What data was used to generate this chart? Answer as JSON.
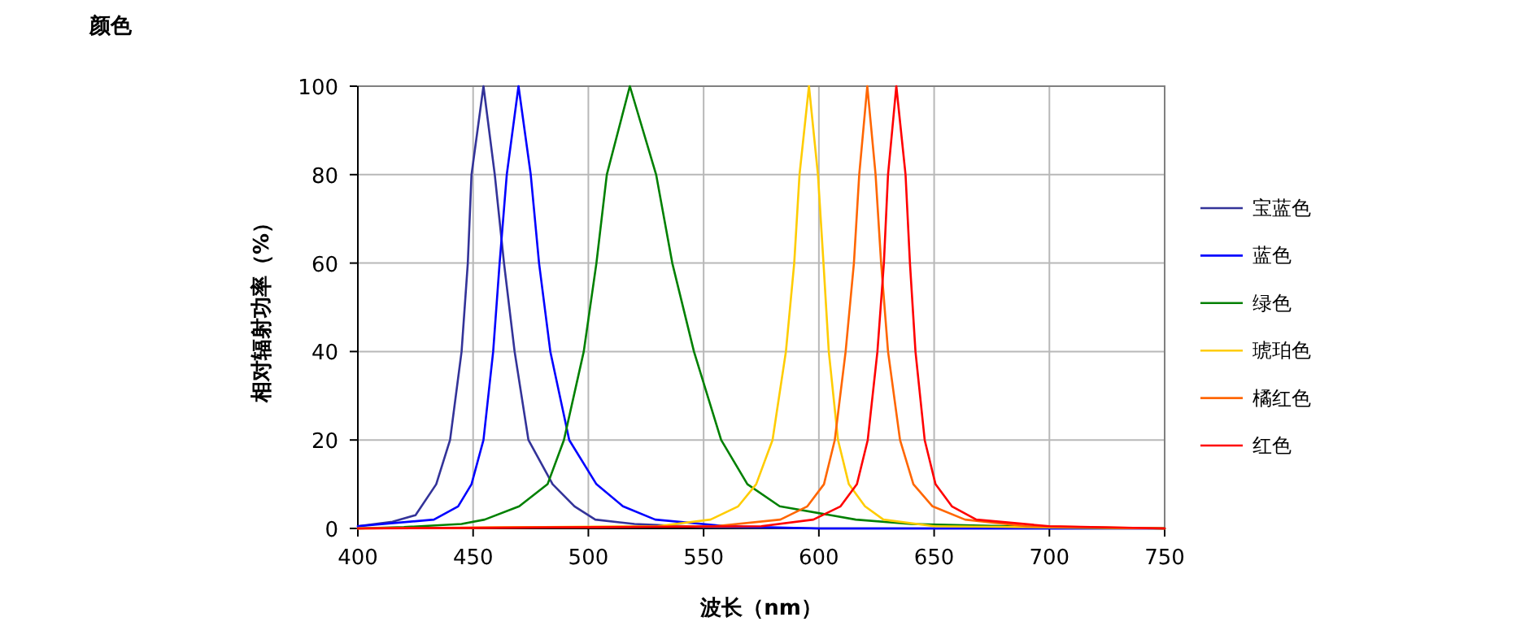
{
  "chart_data": {
    "type": "line",
    "title": "颜色",
    "xlabel": "波长（nm）",
    "ylabel": "相对辐射功率（%）",
    "xlim": [
      400,
      750
    ],
    "xticks": [
      400,
      450,
      500,
      550,
      600,
      650,
      700,
      750
    ],
    "ylim": [
      0,
      100
    ],
    "yticks": [
      0,
      20,
      40,
      60,
      80,
      100
    ],
    "grid": true,
    "legend": "right",
    "marker": "none",
    "line_style": "solid",
    "series": [
      {
        "name": "宝蓝色",
        "color": "#333399",
        "x": [
          400,
          415,
          425,
          434,
          440,
          445,
          447.7,
          449.3,
          454.5,
          459.4,
          463.4,
          468,
          474,
          484.5,
          494,
          503,
          520,
          550,
          600,
          750
        ],
        "values": [
          0.5,
          1.5,
          3,
          10,
          20,
          40,
          60,
          80,
          100,
          80,
          60,
          40,
          20,
          10,
          5,
          2,
          1,
          0.3,
          0,
          0
        ]
      },
      {
        "name": "蓝色",
        "color": "#0000ff",
        "x": [
          400,
          433,
          443.5,
          449.3,
          454.5,
          458.7,
          461.5,
          464.6,
          469.7,
          475,
          478.6,
          483.5,
          491.7,
          503.5,
          515,
          529,
          560,
          600,
          750
        ],
        "values": [
          0.5,
          2,
          5,
          10,
          20,
          40,
          60,
          80,
          100,
          80,
          60,
          40,
          20,
          10,
          5,
          2,
          0.5,
          0,
          0
        ]
      },
      {
        "name": "绿色",
        "color": "#008000",
        "x": [
          400,
          420,
          445,
          455,
          470,
          482.3,
          489.4,
          498,
          503.5,
          508,
          518,
          529.4,
          536.4,
          545.8,
          557.6,
          569,
          583,
          616,
          640,
          700,
          750
        ],
        "values": [
          0,
          0.3,
          1,
          2,
          5,
          10,
          20,
          40,
          60,
          80,
          100,
          80,
          60,
          40,
          20,
          10,
          5,
          2,
          1,
          0.3,
          0
        ]
      },
      {
        "name": "琥珀色",
        "color": "#ffcc00",
        "x": [
          400,
          530,
          553,
          565,
          572.8,
          579.9,
          585.7,
          589.3,
          591.6,
          595.7,
          599.6,
          602,
          604.3,
          608.3,
          613,
          620,
          628,
          650,
          750
        ],
        "values": [
          0,
          0.5,
          2,
          5,
          10,
          20,
          40,
          60,
          80,
          100,
          80,
          60,
          40,
          20,
          10,
          5,
          2,
          0.5,
          0
        ]
      },
      {
        "name": "橘红色",
        "color": "#ff6600",
        "x": [
          400,
          555,
          583.3,
          595,
          602.2,
          606.9,
          611.6,
          615.2,
          617.5,
          621,
          624.6,
          627,
          630,
          635.2,
          641,
          649.3,
          663.4,
          690,
          750
        ],
        "values": [
          0,
          0.5,
          2,
          5,
          10,
          20,
          40,
          60,
          80,
          100,
          80,
          60,
          40,
          20,
          10,
          5,
          2,
          0.5,
          0
        ]
      },
      {
        "name": "红色",
        "color": "#ff0000",
        "x": [
          400,
          575,
          597.6,
          609.4,
          616.5,
          621.2,
          625.4,
          628.2,
          630,
          633.6,
          637.6,
          639.5,
          641.9,
          645.9,
          650.6,
          657.7,
          668.3,
          700,
          750
        ],
        "values": [
          0,
          0.5,
          2,
          5,
          10,
          20,
          40,
          60,
          80,
          100,
          80,
          60,
          40,
          20,
          10,
          5,
          2,
          0.5,
          0
        ]
      }
    ]
  }
}
